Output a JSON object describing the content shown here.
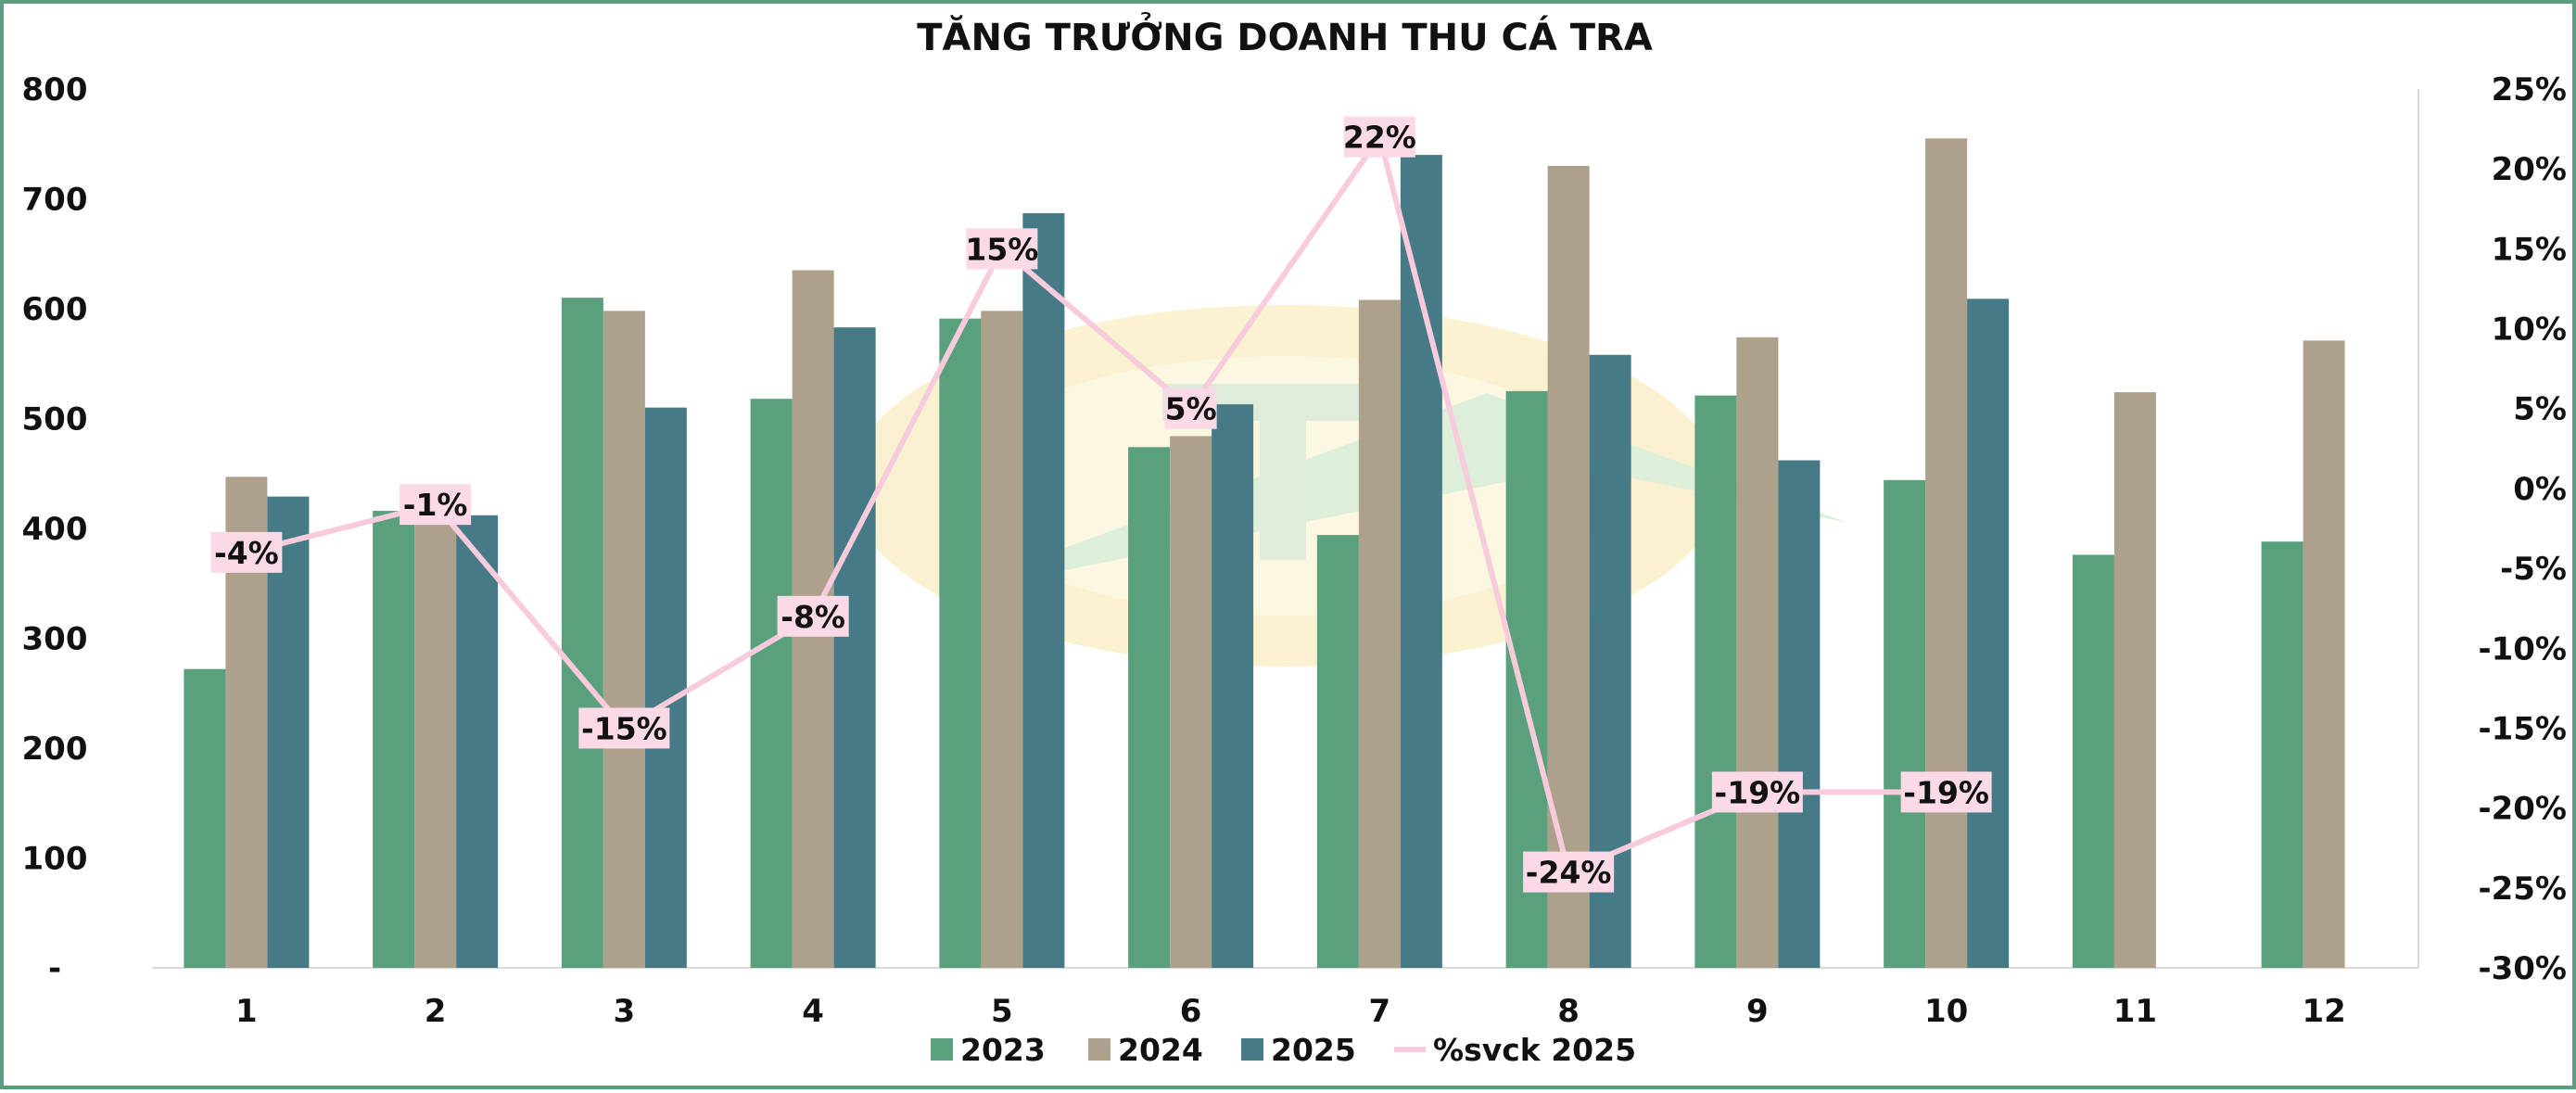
{
  "chart_data": {
    "type": "bar",
    "title": "TĂNG TRƯỞNG DOANH THU CÁ TRA",
    "categories": [
      "1",
      "2",
      "3",
      "4",
      "5",
      "6",
      "7",
      "8",
      "9",
      "10",
      "11",
      "12"
    ],
    "series": [
      {
        "name": "2023",
        "type": "bar",
        "axis": "left",
        "color": "#5aa07c",
        "values": [
          272,
          416,
          610,
          518,
          591,
          474,
          394,
          525,
          521,
          444,
          376,
          388
        ]
      },
      {
        "name": "2024",
        "type": "bar",
        "axis": "left",
        "color": "#ada18c",
        "values": [
          447,
          418,
          598,
          635,
          598,
          484,
          608,
          730,
          574,
          755,
          524,
          571
        ]
      },
      {
        "name": "2025",
        "type": "bar",
        "axis": "left",
        "color": "#477a87",
        "values": [
          429,
          412,
          510,
          583,
          687,
          513,
          740,
          558,
          462,
          609,
          null,
          null
        ]
      },
      {
        "name": "%svck 2025",
        "type": "line",
        "axis": "right",
        "color": "#f7cbdc",
        "values": [
          -4,
          -1,
          -15,
          -8,
          15,
          5,
          22,
          -24,
          -19,
          -19,
          null,
          null
        ],
        "data_labels": [
          "-4%",
          "-1%",
          "-15%",
          "-8%",
          "15%",
          "5%",
          "22%",
          "-24%",
          "-19%",
          "-19%"
        ]
      }
    ],
    "y_left": {
      "min": 0,
      "max": 800,
      "ticks": [
        0,
        100,
        200,
        300,
        400,
        500,
        600,
        700,
        800
      ],
      "tick_labels": [
        "-",
        "100",
        "200",
        "300",
        "400",
        "500",
        "600",
        "700",
        "800"
      ]
    },
    "y_right": {
      "min": -30,
      "max": 25,
      "ticks": [
        -30,
        -25,
        -20,
        -15,
        -10,
        -5,
        0,
        5,
        10,
        15,
        20,
        25
      ],
      "tick_labels": [
        "-30%",
        "-25%",
        "-20%",
        "-15%",
        "-10%",
        "-5%",
        "0%",
        "5%",
        "10%",
        "15%",
        "20%",
        "25%"
      ]
    },
    "grid": false,
    "legend_position": "bottom"
  }
}
